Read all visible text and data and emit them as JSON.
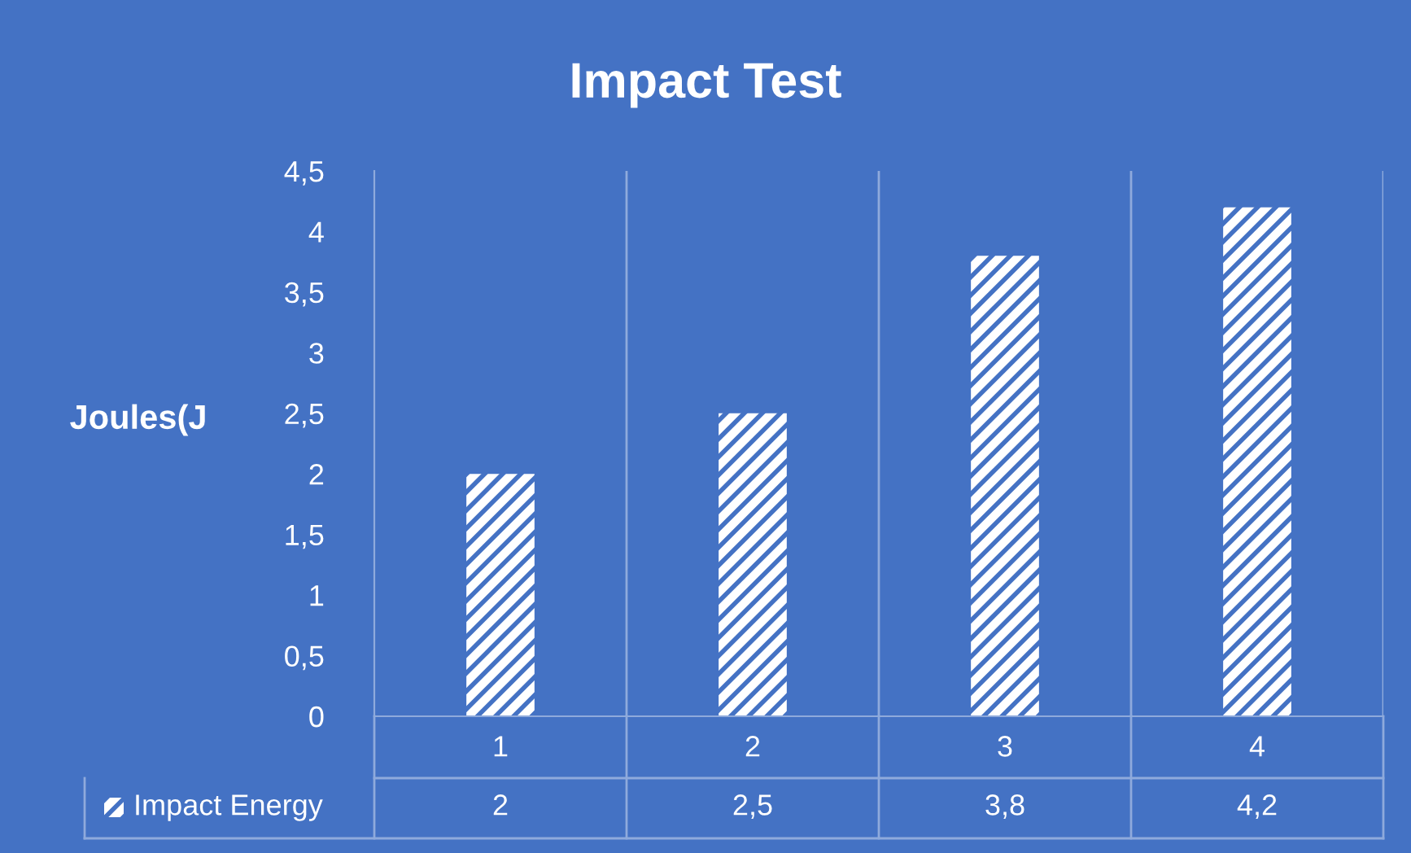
{
  "chart_data": {
    "type": "bar",
    "title": "Impact Test",
    "ylabel": "Joules(J",
    "categories": [
      "1",
      "2",
      "3",
      "4"
    ],
    "series": [
      {
        "name": "Impact Energy",
        "color": "#ffffff",
        "values": [
          2,
          2.5,
          3.8,
          4.2
        ],
        "value_labels": [
          "2",
          "2,5",
          "3,8",
          "4,2"
        ]
      }
    ],
    "ylim": [
      0,
      4.5
    ],
    "yticks": [
      0,
      {
        "value": 0.5,
        "label": "0,5"
      },
      1,
      {
        "value": 1.5,
        "label": "1,5"
      },
      2,
      {
        "value": 2.5,
        "label": "2,5"
      },
      3,
      {
        "value": 3.5,
        "label": "3,5"
      },
      4,
      {
        "value": 4.5,
        "label": "4,5"
      }
    ],
    "grid": "x",
    "legend": "bottom"
  }
}
